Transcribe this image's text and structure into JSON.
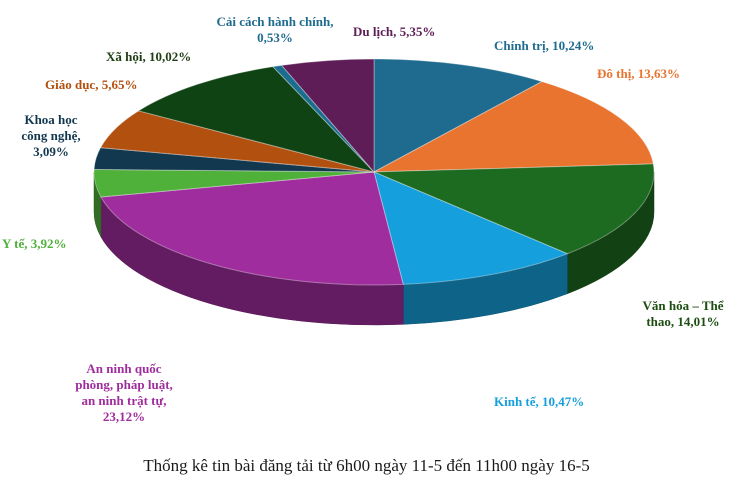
{
  "chart_data": {
    "type": "pie",
    "style": "3d",
    "caption": "Thống kê tin bài đăng tải từ 6h00 ngày 11-5 đến 11h00 ngày 16-5",
    "slices": [
      {
        "label": "Chính trị, 10,24%",
        "lines": [
          "Chính trị, 10,24%"
        ],
        "value": 10.24,
        "color": "#1f6b8f",
        "label_color": "#1f6b8f"
      },
      {
        "label": "Đô thị, 13,63%",
        "lines": [
          "Đô thị, 13,63%"
        ],
        "value": 13.63,
        "color": "#e8742f",
        "label_color": "#e8742f"
      },
      {
        "label": "Văn hóa – Thể thao, 14,01%",
        "lines": [
          "Văn hóa – Thể",
          "thao, 14,01%"
        ],
        "value": 14.01,
        "color": "#1d6b20",
        "label_color": "#1d4d12"
      },
      {
        "label": "Kinh tế, 10,47%",
        "lines": [
          "Kinh tế, 10,47%"
        ],
        "value": 10.47,
        "color": "#159fdc",
        "label_color": "#159fdc"
      },
      {
        "label": "An ninh quốc phòng, pháp luật, an ninh trật tự, 23,12%",
        "lines": [
          "An ninh quốc",
          "phòng, pháp luật,",
          "an ninh trật tự,",
          "23,12%"
        ],
        "value": 23.12,
        "color": "#a02d9d",
        "label_color": "#a02d9d"
      },
      {
        "label": "Y tế, 3,92%",
        "lines": [
          "Y tế, 3,92%"
        ],
        "value": 3.92,
        "color": "#4fb03a",
        "label_color": "#4fb03a"
      },
      {
        "label": "Khoa học công nghệ, 3,09%",
        "lines": [
          "Khoa học",
          "công nghệ,",
          "3,09%"
        ],
        "value": 3.09,
        "color": "#12384f",
        "label_color": "#12384f"
      },
      {
        "label": "Giáo dục, 5,65%",
        "lines": [
          "Giáo dục, 5,65%"
        ],
        "value": 5.65,
        "color": "#b2500f",
        "label_color": "#b2500f"
      },
      {
        "label": "Xã hội, 10,02%",
        "lines": [
          "Xã hội, 10,02%"
        ],
        "value": 10.02,
        "color": "#0f4313",
        "label_color": "#1d3d12"
      },
      {
        "label": "Cải cách hành chính, 0,53%",
        "lines": [
          "Cải cách hành chính,",
          "0,53%"
        ],
        "value": 0.53,
        "color": "#1a6d8e",
        "label_color": "#1f6b8f"
      },
      {
        "label": "Du lịch, 5,35%",
        "lines": [
          "Du lịch, 5,35%"
        ],
        "value": 5.35,
        "color": "#5e1d57",
        "label_color": "#5e1d57"
      }
    ]
  }
}
